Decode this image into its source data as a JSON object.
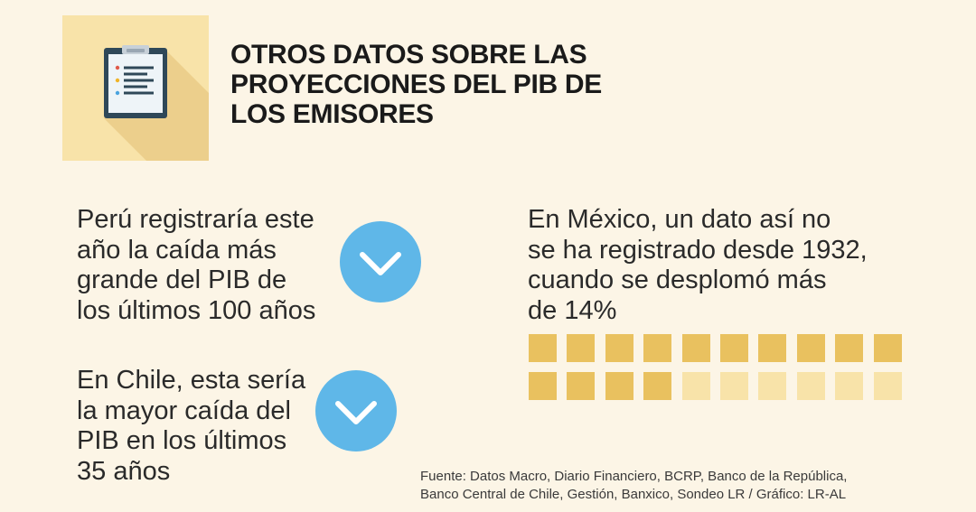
{
  "header": {
    "icon": "clipboard-icon",
    "title_lines": [
      "OTROS DATOS SOBRE LAS",
      "PROYECCIONES DEL PIB DE",
      "LOS EMISORES"
    ]
  },
  "facts": {
    "peru": {
      "lines": [
        "Perú registraría este",
        "año la caída más",
        "grande del PIB de",
        "los últimos 100 años"
      ],
      "icon": "chevron-down-icon"
    },
    "chile": {
      "lines": [
        "En Chile, esta sería",
        "la mayor caída del",
        "PIB en los últimos",
        "35 años"
      ],
      "icon": "chevron-down-icon"
    },
    "mexico": {
      "lines": [
        "En México, un dato así no",
        "se ha registrado desde 1932,",
        "cuando se desplomó más",
        "de 14%"
      ]
    }
  },
  "chart_data": {
    "type": "waffle",
    "rows": 2,
    "columns": 10,
    "total": 20,
    "filled": 14,
    "filled_color": "#e9c15f",
    "empty_color": "#f8e3a9"
  },
  "source": {
    "lines": [
      "Fuente: Datos Macro, Diario Financiero, BCRP, Banco de la República,",
      "Banco Central de Chile, Gestión, Banxico, Sondeo LR / Gráfico: LR-AL"
    ]
  },
  "colors": {
    "background": "#fcf5e6",
    "tile": "#f8e3a9",
    "accent_blue": "#5fb7e8",
    "clipboard_dark": "#2f4858"
  }
}
